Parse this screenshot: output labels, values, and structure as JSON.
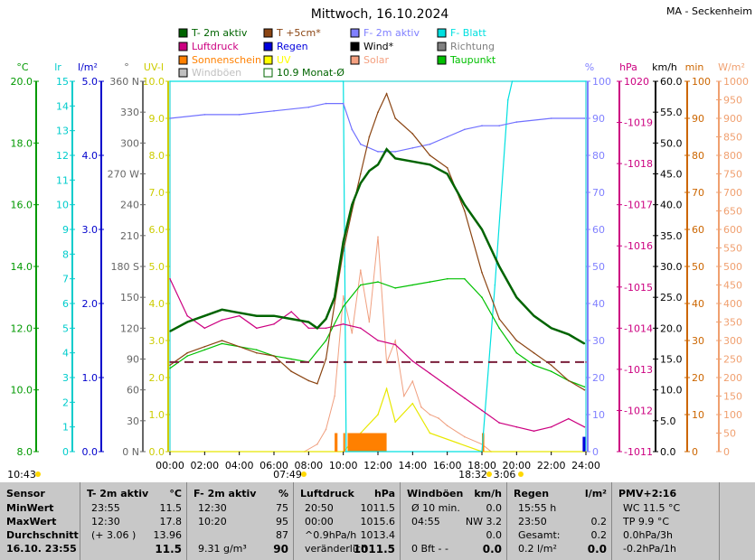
{
  "header": {
    "title": "Mittwoch, 16.10.2024",
    "station": "MA - Seckenheim"
  },
  "legend": [
    {
      "label": "T- 2m aktiv",
      "color": "#006400",
      "filled": true
    },
    {
      "label": "T +5cm*",
      "color": "#8b4513",
      "filled": true
    },
    {
      "label": "F- 2m aktiv",
      "color": "#8080ff",
      "filled": true
    },
    {
      "label": "F- Blatt",
      "color": "#00e0e0",
      "filled": true
    },
    {
      "label": "Luftdruck",
      "color": "#cc0080",
      "filled": true
    },
    {
      "label": "Regen",
      "color": "#0000dd",
      "filled": true
    },
    {
      "label": "Wind*",
      "color": "#000000",
      "filled": true
    },
    {
      "label": "Richtung",
      "color": "#808080",
      "filled": true
    },
    {
      "label": "Sonnenschein",
      "color": "#ff8000",
      "filled": true
    },
    {
      "label": "UV",
      "color": "#ffff00",
      "filled": true
    },
    {
      "label": "Solar",
      "color": "#f4a080",
      "filled": true
    },
    {
      "label": "Taupunkt",
      "color": "#00c000",
      "filled": true
    },
    {
      "label": "Windböen",
      "color": "#c0c0c0",
      "filled": true
    },
    {
      "label": "10.9 Monat-Ø",
      "color": "#006400",
      "filled": false
    }
  ],
  "axis_units": {
    "temp": "°C",
    "lr": "lr",
    "lm2": "l/m²",
    "deg": "°",
    "uv": "UV-I",
    "pct": "%",
    "hpa": "hPa",
    "kmh": "km/h",
    "min": "min",
    "wm2": "W/m²"
  },
  "axes": {
    "temp": [
      "8.0",
      "10.0",
      "12.0",
      "14.0",
      "16.0",
      "18.0",
      "20.0"
    ],
    "lr": [
      "0",
      "1",
      "2",
      "3",
      "4",
      "5",
      "6",
      "7",
      "8",
      "9",
      "10",
      "11",
      "12",
      "13",
      "14",
      "15"
    ],
    "lm2": [
      "0.0",
      "1.0",
      "2.0",
      "3.0",
      "4.0",
      "5.0"
    ],
    "deg": [
      "0 N",
      "30",
      "60",
      "90",
      "120",
      "150",
      "180 S",
      "210",
      "240",
      "270 W",
      "300",
      "330",
      "360 N"
    ],
    "uv": [
      "0.0",
      "1.0",
      "2.0",
      "3.0",
      "4.0",
      "5.0",
      "6.0",
      "7.0",
      "8.0",
      "9.0",
      "10.0"
    ],
    "pct": [
      "0",
      "10",
      "20",
      "30",
      "40",
      "50",
      "60",
      "70",
      "80",
      "90",
      "100"
    ],
    "hpa": [
      "-1011",
      "-1012",
      "-1013",
      "-1014",
      "-1015",
      "-1016",
      "-1017",
      "-1018",
      "-1019",
      "1020"
    ],
    "kmh": [
      "0.0",
      "5.0",
      "10.0",
      "15.0",
      "20.0",
      "25.0",
      "30.0",
      "35.0",
      "40.0",
      "45.0",
      "50.0",
      "55.0",
      "60.0"
    ],
    "min": [
      "0",
      "10",
      "20",
      "30",
      "40",
      "50",
      "60",
      "70",
      "80",
      "90",
      "100"
    ],
    "wm2": [
      "0",
      "50",
      "100",
      "150",
      "200",
      "250",
      "300",
      "350",
      "400",
      "450",
      "500",
      "550",
      "600",
      "650",
      "700",
      "750",
      "800",
      "850",
      "900",
      "950",
      "1000"
    ],
    "time": [
      "00:00",
      "02:00",
      "04:00",
      "06:00",
      "08:00",
      "10:00",
      "12:00",
      "14:00",
      "16:00",
      "18:00",
      "20:00",
      "22:00",
      "24:00"
    ]
  },
  "sun_markers": {
    "moonrise": "10:43",
    "sunrise": "07:49",
    "sunset": "18:32",
    "moonset": "3:06"
  },
  "colors": {
    "temp_axis": "#009900",
    "lr_axis": "#00cccc",
    "lm2_axis": "#0000cc",
    "deg_axis": "#666666",
    "uv_axis": "#cccc00",
    "pct_axis": "#8080ff",
    "hpa_axis": "#cc0080",
    "kmh_axis": "#000000",
    "min_axis": "#cc6600",
    "wm2_axis": "#f0a070",
    "frame": "#00cccc",
    "month_avg": "#7a1f3a"
  },
  "chart_data": {
    "type": "line",
    "title": "Mittwoch, 16.10.2024",
    "xlabel": "",
    "x_range": [
      "00:00",
      "24:00"
    ],
    "series": [
      {
        "name": "T- 2m aktiv",
        "unit": "°C",
        "ylim": [
          8,
          20
        ],
        "x": [
          "00:00",
          "01:00",
          "02:00",
          "03:00",
          "04:00",
          "05:00",
          "06:00",
          "07:00",
          "08:00",
          "08:30",
          "09:00",
          "09:30",
          "10:00",
          "10:30",
          "11:00",
          "11:30",
          "12:00",
          "12:30",
          "13:00",
          "14:00",
          "15:00",
          "16:00",
          "17:00",
          "18:00",
          "19:00",
          "20:00",
          "21:00",
          "22:00",
          "23:00",
          "23:55"
        ],
        "values": [
          11.9,
          12.2,
          12.4,
          12.6,
          12.5,
          12.4,
          12.4,
          12.3,
          12.2,
          12.0,
          12.3,
          13.0,
          14.8,
          16.0,
          16.7,
          17.1,
          17.3,
          17.8,
          17.5,
          17.4,
          17.3,
          17.0,
          16.0,
          15.2,
          14.0,
          13.0,
          12.4,
          12.0,
          11.8,
          11.5
        ]
      },
      {
        "name": "T +5cm*",
        "unit": "°C",
        "ylim": [
          8,
          20
        ],
        "x": [
          "00:00",
          "01:00",
          "02:00",
          "03:00",
          "04:00",
          "05:00",
          "06:00",
          "07:00",
          "08:00",
          "08:30",
          "09:00",
          "09:30",
          "10:00",
          "10:30",
          "11:00",
          "11:30",
          "12:00",
          "12:30",
          "13:00",
          "14:00",
          "15:00",
          "16:00",
          "17:00",
          "18:00",
          "19:00",
          "20:00",
          "21:00",
          "22:00",
          "23:00",
          "23:55"
        ],
        "values": [
          10.8,
          11.2,
          11.4,
          11.6,
          11.4,
          11.2,
          11.1,
          10.6,
          10.3,
          10.2,
          11.0,
          12.8,
          14.5,
          15.8,
          17.0,
          18.2,
          19.0,
          19.6,
          18.8,
          18.3,
          17.6,
          17.2,
          15.8,
          13.8,
          12.3,
          11.6,
          11.2,
          10.8,
          10.3,
          10.0
        ]
      },
      {
        "name": "Taupunkt",
        "unit": "°C",
        "ylim": [
          8,
          20
        ],
        "x": [
          "00:00",
          "01:00",
          "02:00",
          "03:00",
          "04:00",
          "05:00",
          "06:00",
          "07:00",
          "08:00",
          "09:00",
          "10:00",
          "11:00",
          "12:00",
          "13:00",
          "14:00",
          "15:00",
          "16:00",
          "17:00",
          "18:00",
          "19:00",
          "20:00",
          "21:00",
          "22:00",
          "23:00",
          "23:55"
        ],
        "values": [
          10.7,
          11.1,
          11.3,
          11.5,
          11.4,
          11.3,
          11.1,
          11.0,
          10.9,
          11.6,
          12.7,
          13.4,
          13.5,
          13.3,
          13.4,
          13.5,
          13.6,
          13.6,
          13.0,
          12.0,
          11.2,
          10.8,
          10.6,
          10.3,
          10.1
        ]
      },
      {
        "name": "F- 2m aktiv",
        "unit": "%",
        "ylim": [
          0,
          100
        ],
        "x": [
          "00:00",
          "02:00",
          "04:00",
          "06:00",
          "08:00",
          "09:00",
          "10:00",
          "10:30",
          "11:00",
          "12:00",
          "13:00",
          "14:00",
          "15:00",
          "16:00",
          "17:00",
          "18:00",
          "19:00",
          "20:00",
          "22:00",
          "23:55"
        ],
        "values": [
          90,
          91,
          91,
          92,
          93,
          94,
          94,
          87,
          83,
          81,
          81,
          82,
          83,
          85,
          87,
          88,
          88,
          89,
          90,
          90
        ]
      },
      {
        "name": "F- Blatt",
        "unit": "%",
        "ylim": [
          0,
          100
        ],
        "x": [
          "00:00",
          "10:00",
          "10:05",
          "10:10",
          "18:00",
          "18:45",
          "19:30",
          "19:45",
          "24:00"
        ],
        "values": [
          100,
          100,
          50,
          0,
          0,
          45,
          95,
          100,
          100
        ]
      },
      {
        "name": "Luftdruck",
        "unit": "hPa",
        "ylim": [
          1011,
          1020
        ],
        "x": [
          "00:00",
          "01:00",
          "02:00",
          "03:00",
          "04:00",
          "05:00",
          "06:00",
          "07:00",
          "08:00",
          "09:00",
          "10:00",
          "11:00",
          "12:00",
          "13:00",
          "14:00",
          "15:00",
          "16:00",
          "17:00",
          "18:00",
          "19:00",
          "20:00",
          "21:00",
          "22:00",
          "23:00",
          "23:55"
        ],
        "values": [
          1015.2,
          1014.3,
          1014.0,
          1014.2,
          1014.3,
          1014.0,
          1014.1,
          1014.4,
          1014.0,
          1014.0,
          1014.1,
          1014.0,
          1013.7,
          1013.6,
          1013.2,
          1012.9,
          1012.6,
          1012.3,
          1012.0,
          1011.7,
          1011.6,
          1011.5,
          1011.6,
          1011.8,
          1011.6
        ]
      },
      {
        "name": "Solar",
        "unit": "W/m²",
        "ylim": [
          0,
          1000
        ],
        "x": [
          "00:00",
          "07:45",
          "08:30",
          "09:00",
          "09:30",
          "10:00",
          "10:30",
          "11:00",
          "11:30",
          "12:00",
          "12:30",
          "13:00",
          "13:30",
          "14:00",
          "14:30",
          "15:00",
          "15:30",
          "16:00",
          "17:00",
          "18:00",
          "18:32",
          "24:00"
        ],
        "values": [
          0,
          0,
          20,
          60,
          150,
          420,
          320,
          490,
          350,
          580,
          240,
          300,
          150,
          190,
          120,
          100,
          90,
          70,
          40,
          20,
          0,
          0
        ]
      },
      {
        "name": "UV",
        "unit": "UV-I",
        "ylim": [
          0,
          10
        ],
        "x": [
          "00:00",
          "10:00",
          "11:00",
          "12:00",
          "12:30",
          "13:00",
          "14:00",
          "15:00",
          "18:00",
          "24:00"
        ],
        "values": [
          0,
          0,
          0.5,
          1.0,
          1.7,
          0.8,
          1.3,
          0.5,
          0,
          0
        ]
      },
      {
        "name": "Sonnenschein",
        "unit": "min",
        "ylim": [
          0,
          100
        ],
        "x": [
          "09:30",
          "10:00",
          "10:15",
          "10:30",
          "11:00",
          "11:30",
          "12:00",
          "12:30",
          "18:00"
        ],
        "values": [
          5,
          0,
          5,
          5,
          5,
          5,
          5,
          5,
          5
        ]
      },
      {
        "name": "Regen",
        "unit": "l/m²",
        "ylim": [
          0,
          5
        ],
        "x": [
          "23:55"
        ],
        "values": [
          0.2
        ]
      },
      {
        "name": "10.9 Monat-Ø",
        "unit": "°C",
        "ylim": [
          8,
          20
        ],
        "x": [
          "00:00",
          "24:00"
        ],
        "values": [
          10.9,
          10.9
        ]
      }
    ]
  },
  "stats_table": {
    "columns": [
      {
        "head": "Sensor",
        "head2": "",
        "rows": [
          [
            "MinWert",
            ""
          ],
          [
            "MaxWert",
            ""
          ],
          [
            "Durchschnitt",
            ""
          ],
          [
            "16.10. 23:55",
            ""
          ]
        ]
      },
      {
        "head": "T- 2m aktiv",
        "head2": "°C",
        "rows": [
          [
            "23:55",
            "11.5"
          ],
          [
            "12:30",
            "17.8"
          ],
          [
            "(+ 3.06 )",
            "13.96"
          ],
          [
            "",
            "11.5"
          ]
        ]
      },
      {
        "head": "F- 2m aktiv",
        "head2": "%",
        "rows": [
          [
            "12:30",
            "75"
          ],
          [
            "10:20",
            "95"
          ],
          [
            "",
            "87"
          ],
          [
            "9.31 g/m³",
            "90"
          ]
        ]
      },
      {
        "head": "Luftdruck",
        "head2": "hPa",
        "rows": [
          [
            "20:50",
            "1011.5"
          ],
          [
            "00:00",
            "1015.6"
          ],
          [
            "^0.9hPa/h",
            "1013.4"
          ],
          [
            "veränderlich",
            "1011.5"
          ]
        ]
      },
      {
        "head": "Windböen",
        "head2": "km/h",
        "rows": [
          [
            "Ø 10 min.",
            "0.0"
          ],
          [
            "04:55",
            "NW 3.2"
          ],
          [
            "",
            "0.0"
          ],
          [
            "0 Bft - -",
            "0.0"
          ]
        ]
      },
      {
        "head": "Regen",
        "head2": "l/m²",
        "rows": [
          [
            "15:55 h",
            ""
          ],
          [
            "23:50",
            "0.2"
          ],
          [
            "Gesamt:",
            "0.2"
          ],
          [
            "0.2 l/m²",
            "0.0"
          ]
        ]
      },
      {
        "head": "PMV+2:16",
        "head2": "",
        "rows": [
          [
            "WC 11.5 °C",
            ""
          ],
          [
            "TP 9.9 °C",
            ""
          ],
          [
            "0.0hPa/3h",
            ""
          ],
          [
            "-0.2hPa/1h",
            ""
          ]
        ]
      },
      {
        "head": "",
        "head2": "",
        "rows": [
          [
            "",
            ""
          ],
          [
            "",
            ""
          ],
          [
            "",
            ""
          ],
          [
            "",
            ""
          ]
        ]
      }
    ]
  }
}
